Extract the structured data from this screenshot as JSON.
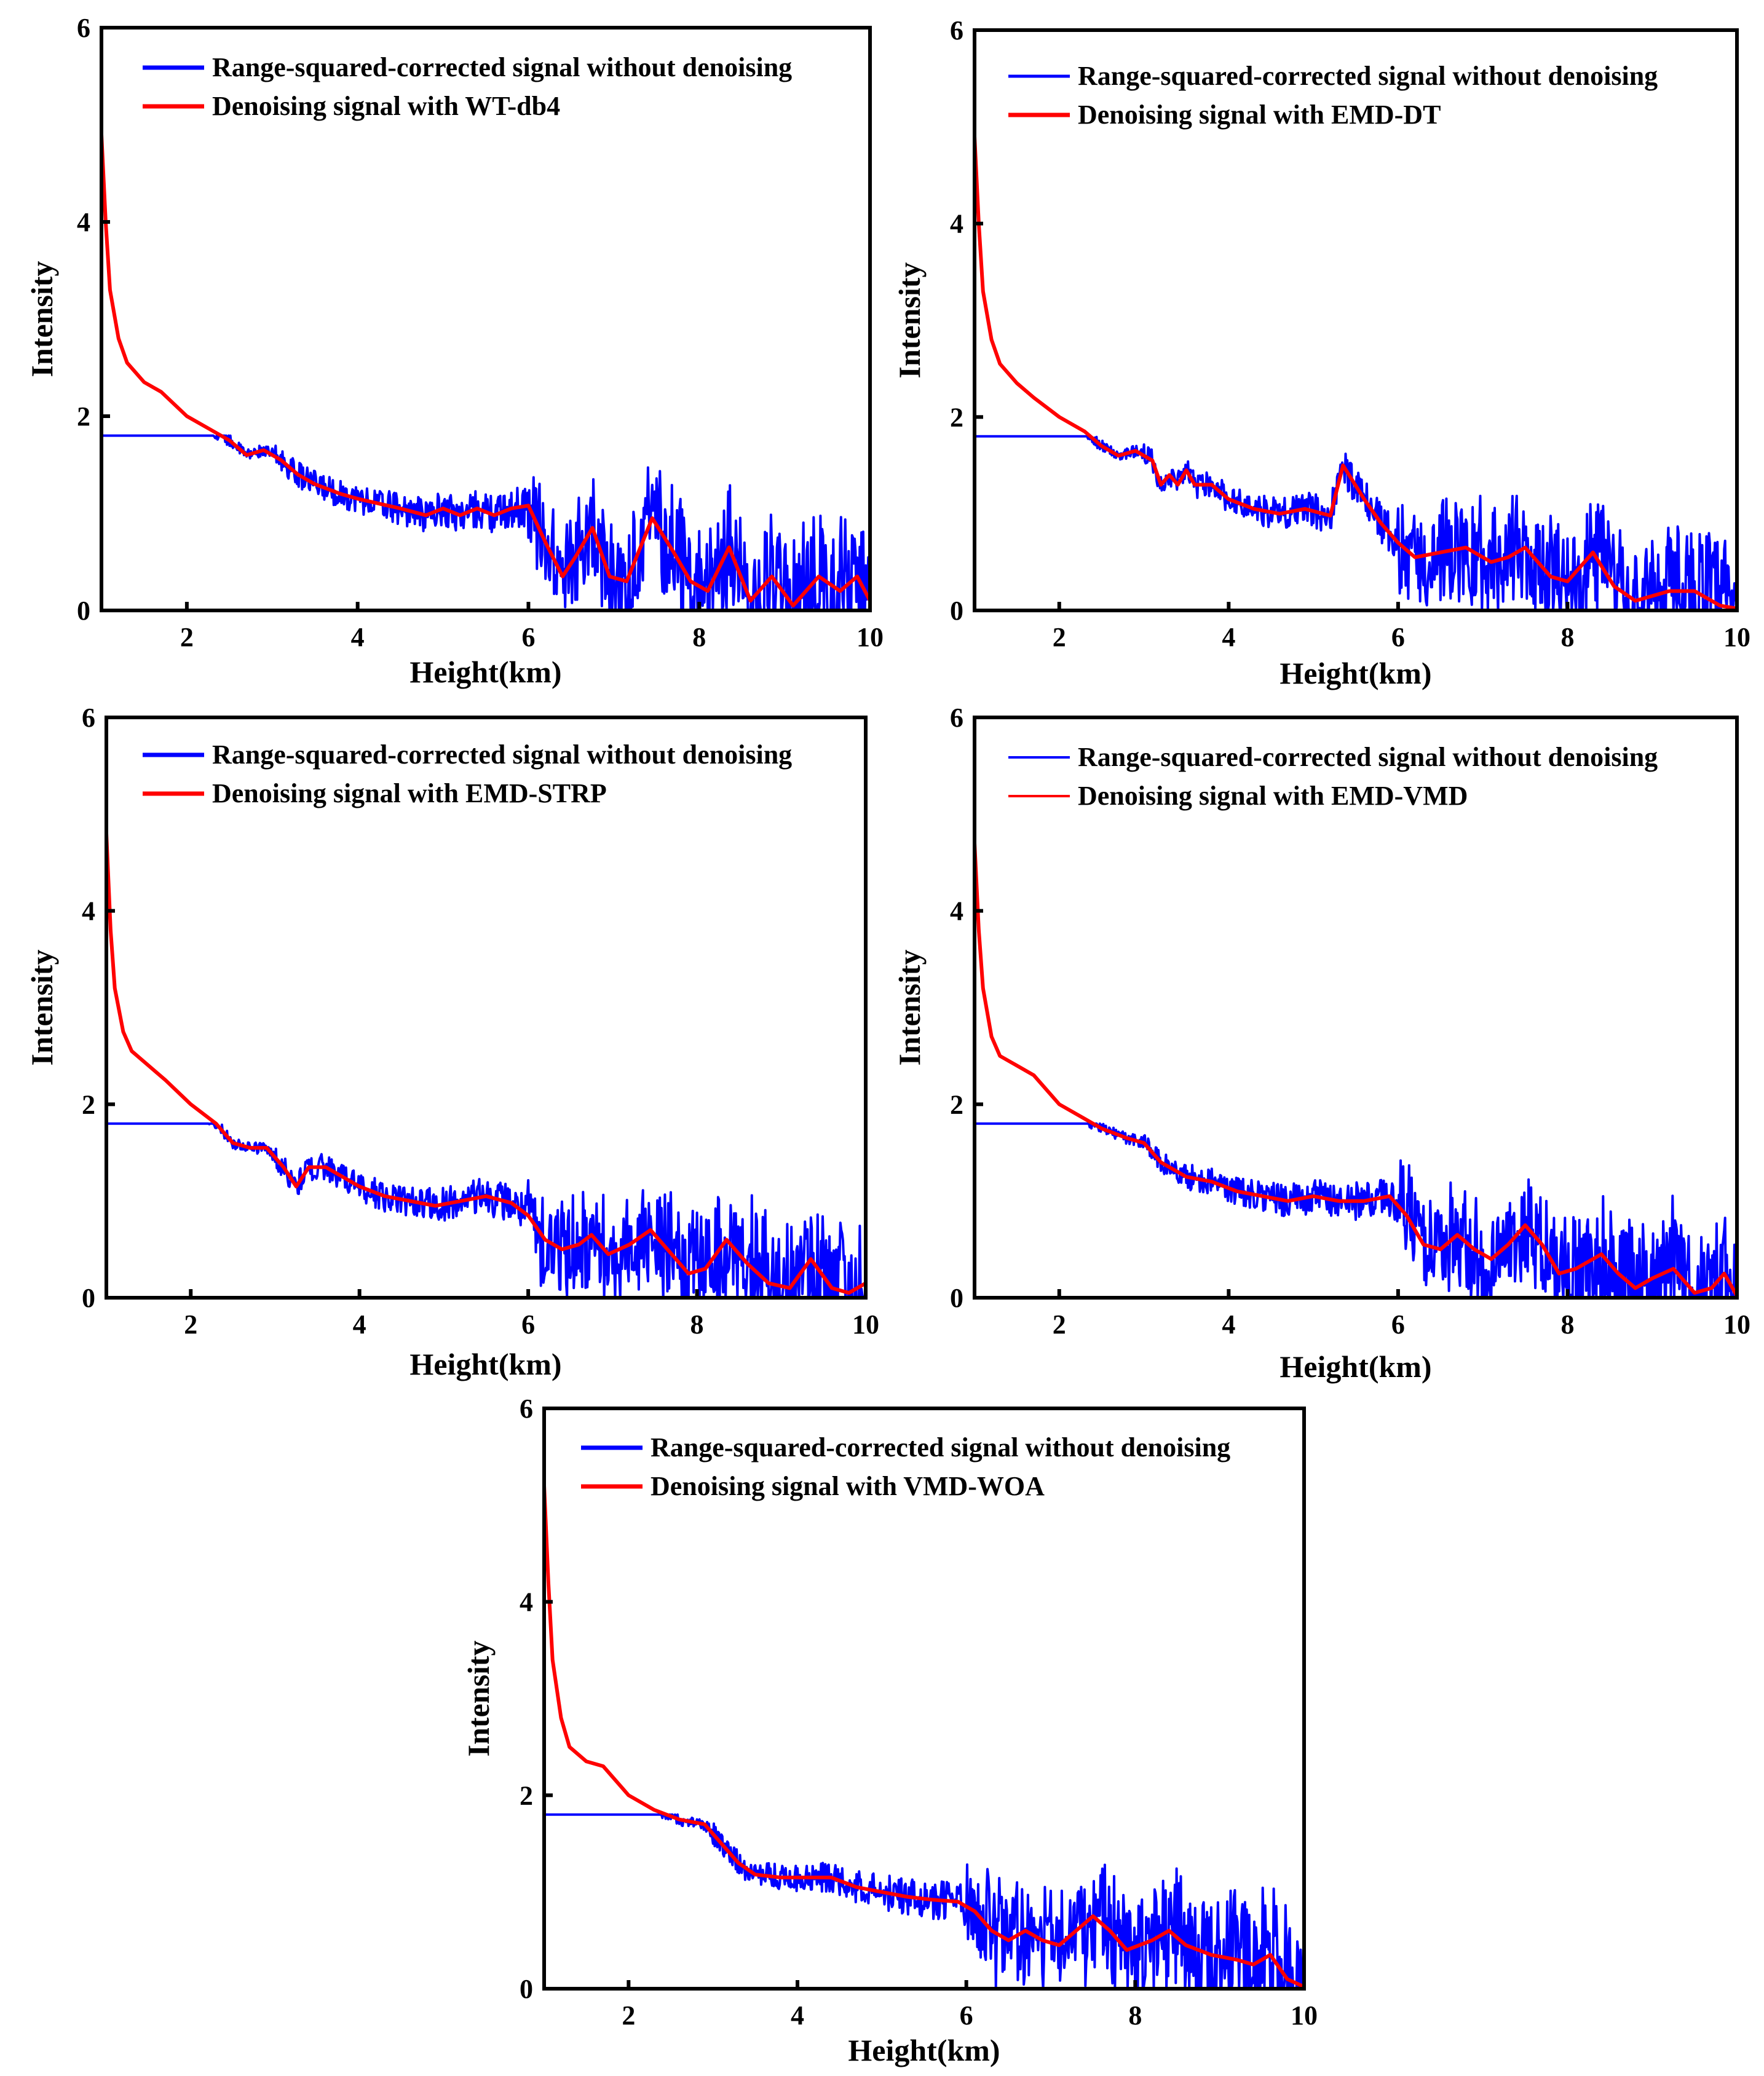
{
  "chart_data": [
    {
      "type": "line",
      "panel": "top-left",
      "xlabel": "Height(km)",
      "ylabel": "Intensity",
      "xlim": [
        1,
        10
      ],
      "ylim": [
        0,
        6
      ],
      "xticks": [
        2,
        4,
        6,
        8,
        10
      ],
      "yticks": [
        0,
        2,
        4,
        6
      ],
      "grid": false,
      "legend_position": "top",
      "series": [
        {
          "name": "Range-squared-corrected signal without denoising",
          "color": "#0000ff",
          "kind": "raw"
        },
        {
          "name": "Denoising signal with WT-db4",
          "color": "#ff0000",
          "kind": "denoised",
          "points": [
            [
              1.0,
              4.9
            ],
            [
              1.05,
              4.0
            ],
            [
              1.1,
              3.3
            ],
            [
              1.2,
              2.8
            ],
            [
              1.3,
              2.55
            ],
            [
              1.5,
              2.35
            ],
            [
              1.7,
              2.25
            ],
            [
              2.0,
              2.0
            ],
            [
              2.3,
              1.85
            ],
            [
              2.5,
              1.75
            ],
            [
              2.7,
              1.6
            ],
            [
              2.9,
              1.65
            ],
            [
              3.1,
              1.55
            ],
            [
              3.3,
              1.4
            ],
            [
              3.5,
              1.3
            ],
            [
              3.8,
              1.2
            ],
            [
              4.0,
              1.15
            ],
            [
              4.5,
              1.05
            ],
            [
              4.8,
              0.98
            ],
            [
              5.0,
              1.05
            ],
            [
              5.2,
              0.98
            ],
            [
              5.4,
              1.05
            ],
            [
              5.6,
              0.98
            ],
            [
              5.8,
              1.05
            ],
            [
              6.0,
              1.08
            ],
            [
              6.2,
              0.7
            ],
            [
              6.4,
              0.35
            ],
            [
              6.55,
              0.55
            ],
            [
              6.75,
              0.85
            ],
            [
              6.95,
              0.35
            ],
            [
              7.15,
              0.3
            ],
            [
              7.45,
              0.95
            ],
            [
              7.7,
              0.6
            ],
            [
              7.9,
              0.3
            ],
            [
              8.1,
              0.2
            ],
            [
              8.35,
              0.65
            ],
            [
              8.6,
              0.1
            ],
            [
              8.85,
              0.35
            ],
            [
              9.1,
              0.05
            ],
            [
              9.4,
              0.35
            ],
            [
              9.65,
              0.2
            ],
            [
              9.85,
              0.35
            ],
            [
              10.0,
              0.1
            ]
          ]
        }
      ]
    },
    {
      "type": "line",
      "panel": "top-right",
      "xlabel": "Height(km)",
      "ylabel": "Intensity",
      "xlim": [
        1,
        10
      ],
      "ylim": [
        0,
        6
      ],
      "xticks": [
        2,
        4,
        6,
        8,
        10
      ],
      "yticks": [
        0,
        2,
        4,
        6
      ],
      "grid": false,
      "legend_position": "top",
      "series": [
        {
          "name": "Range-squared-corrected signal without denoising",
          "color": "#0000ff",
          "kind": "raw"
        },
        {
          "name": "Denoising signal with EMD-DT",
          "color": "#ff0000",
          "kind": "denoised",
          "points": [
            [
              1.0,
              4.9
            ],
            [
              1.05,
              4.0
            ],
            [
              1.1,
              3.3
            ],
            [
              1.2,
              2.8
            ],
            [
              1.3,
              2.55
            ],
            [
              1.5,
              2.35
            ],
            [
              1.7,
              2.2
            ],
            [
              2.0,
              2.0
            ],
            [
              2.3,
              1.85
            ],
            [
              2.5,
              1.7
            ],
            [
              2.7,
              1.6
            ],
            [
              2.9,
              1.65
            ],
            [
              3.1,
              1.55
            ],
            [
              3.2,
              1.3
            ],
            [
              3.3,
              1.4
            ],
            [
              3.4,
              1.3
            ],
            [
              3.5,
              1.45
            ],
            [
              3.6,
              1.3
            ],
            [
              3.8,
              1.3
            ],
            [
              4.0,
              1.15
            ],
            [
              4.3,
              1.05
            ],
            [
              4.6,
              1.0
            ],
            [
              4.9,
              1.05
            ],
            [
              5.2,
              0.98
            ],
            [
              5.35,
              1.5
            ],
            [
              5.6,
              1.15
            ],
            [
              5.8,
              0.9
            ],
            [
              6.0,
              0.7
            ],
            [
              6.2,
              0.55
            ],
            [
              6.5,
              0.6
            ],
            [
              6.8,
              0.65
            ],
            [
              7.1,
              0.5
            ],
            [
              7.3,
              0.55
            ],
            [
              7.5,
              0.65
            ],
            [
              7.8,
              0.35
            ],
            [
              8.0,
              0.3
            ],
            [
              8.3,
              0.6
            ],
            [
              8.55,
              0.25
            ],
            [
              8.8,
              0.1
            ],
            [
              9.2,
              0.2
            ],
            [
              9.5,
              0.2
            ],
            [
              9.8,
              0.05
            ],
            [
              10.0,
              0.02
            ]
          ]
        }
      ]
    },
    {
      "type": "line",
      "panel": "middle-left",
      "xlabel": "Height(km)",
      "ylabel": "Intensity",
      "xlim": [
        1,
        10
      ],
      "ylim": [
        0,
        6
      ],
      "xticks": [
        2,
        4,
        6,
        8,
        10
      ],
      "yticks": [
        0,
        2,
        4,
        6
      ],
      "grid": false,
      "legend_position": "top",
      "series": [
        {
          "name": "Range-squared-corrected signal without denoising",
          "color": "#0000ff",
          "kind": "raw"
        },
        {
          "name": "Denoising signal with EMD-STRP",
          "color": "#ff0000",
          "kind": "denoised",
          "points": [
            [
              1.0,
              4.8
            ],
            [
              1.05,
              3.8
            ],
            [
              1.1,
              3.2
            ],
            [
              1.2,
              2.75
            ],
            [
              1.3,
              2.55
            ],
            [
              1.5,
              2.4
            ],
            [
              1.7,
              2.25
            ],
            [
              2.0,
              2.0
            ],
            [
              2.3,
              1.8
            ],
            [
              2.5,
              1.6
            ],
            [
              2.7,
              1.55
            ],
            [
              2.9,
              1.55
            ],
            [
              3.1,
              1.35
            ],
            [
              3.25,
              1.15
            ],
            [
              3.4,
              1.35
            ],
            [
              3.6,
              1.35
            ],
            [
              3.8,
              1.25
            ],
            [
              4.0,
              1.15
            ],
            [
              4.3,
              1.05
            ],
            [
              4.6,
              1.0
            ],
            [
              4.9,
              0.95
            ],
            [
              5.2,
              1.0
            ],
            [
              5.5,
              1.05
            ],
            [
              5.8,
              0.98
            ],
            [
              6.0,
              0.85
            ],
            [
              6.2,
              0.6
            ],
            [
              6.4,
              0.5
            ],
            [
              6.6,
              0.55
            ],
            [
              6.75,
              0.65
            ],
            [
              6.95,
              0.45
            ],
            [
              7.2,
              0.55
            ],
            [
              7.45,
              0.7
            ],
            [
              7.7,
              0.45
            ],
            [
              7.9,
              0.25
            ],
            [
              8.1,
              0.3
            ],
            [
              8.35,
              0.6
            ],
            [
              8.6,
              0.35
            ],
            [
              8.85,
              0.15
            ],
            [
              9.1,
              0.1
            ],
            [
              9.35,
              0.4
            ],
            [
              9.6,
              0.1
            ],
            [
              9.8,
              0.05
            ],
            [
              10.0,
              0.15
            ]
          ]
        }
      ]
    },
    {
      "type": "line",
      "panel": "middle-right",
      "xlabel": "Height(km)",
      "ylabel": "Intensity",
      "xlim": [
        1,
        10
      ],
      "ylim": [
        0,
        6
      ],
      "xticks": [
        2,
        4,
        6,
        8,
        10
      ],
      "yticks": [
        0,
        2,
        4,
        6
      ],
      "grid": false,
      "legend_position": "top",
      "series": [
        {
          "name": "Range-squared-corrected signal without denoising",
          "color": "#0000ff",
          "kind": "raw"
        },
        {
          "name": "Denoising signal with EMD-VMD",
          "color": "#ff0000",
          "kind": "denoised",
          "points": [
            [
              1.0,
              4.7
            ],
            [
              1.05,
              3.8
            ],
            [
              1.1,
              3.2
            ],
            [
              1.2,
              2.7
            ],
            [
              1.3,
              2.5
            ],
            [
              1.5,
              2.4
            ],
            [
              1.7,
              2.3
            ],
            [
              2.0,
              2.0
            ],
            [
              2.3,
              1.85
            ],
            [
              2.5,
              1.75
            ],
            [
              2.8,
              1.65
            ],
            [
              3.0,
              1.6
            ],
            [
              3.2,
              1.4
            ],
            [
              3.5,
              1.25
            ],
            [
              3.8,
              1.2
            ],
            [
              4.1,
              1.1
            ],
            [
              4.4,
              1.05
            ],
            [
              4.7,
              1.0
            ],
            [
              5.0,
              1.05
            ],
            [
              5.3,
              1.0
            ],
            [
              5.6,
              1.0
            ],
            [
              5.9,
              1.05
            ],
            [
              6.1,
              0.85
            ],
            [
              6.3,
              0.55
            ],
            [
              6.5,
              0.5
            ],
            [
              6.7,
              0.65
            ],
            [
              6.9,
              0.5
            ],
            [
              7.1,
              0.4
            ],
            [
              7.3,
              0.55
            ],
            [
              7.5,
              0.75
            ],
            [
              7.7,
              0.55
            ],
            [
              7.9,
              0.25
            ],
            [
              8.1,
              0.3
            ],
            [
              8.4,
              0.45
            ],
            [
              8.6,
              0.25
            ],
            [
              8.8,
              0.1
            ],
            [
              9.0,
              0.2
            ],
            [
              9.25,
              0.3
            ],
            [
              9.5,
              0.05
            ],
            [
              9.7,
              0.1
            ],
            [
              9.85,
              0.25
            ],
            [
              10.0,
              0.02
            ]
          ]
        }
      ]
    },
    {
      "type": "line",
      "panel": "bottom-center",
      "xlabel": "Height(km)",
      "ylabel": "Intensity",
      "xlim": [
        1,
        10
      ],
      "ylim": [
        0,
        6
      ],
      "xticks": [
        2,
        4,
        6,
        8,
        10
      ],
      "yticks": [
        0,
        2,
        4,
        6
      ],
      "grid": false,
      "legend_position": "top",
      "series": [
        {
          "name": "Range-squared-corrected signal without denoising",
          "color": "#0000ff",
          "kind": "raw"
        },
        {
          "name": "Denoising signal with VMD-WOA",
          "color": "#ff0000",
          "kind": "denoised",
          "points": [
            [
              1.0,
              5.2
            ],
            [
              1.05,
              4.2
            ],
            [
              1.1,
              3.4
            ],
            [
              1.2,
              2.8
            ],
            [
              1.3,
              2.5
            ],
            [
              1.5,
              2.35
            ],
            [
              1.7,
              2.3
            ],
            [
              2.0,
              2.0
            ],
            [
              2.3,
              1.85
            ],
            [
              2.6,
              1.75
            ],
            [
              2.9,
              1.7
            ],
            [
              3.1,
              1.5
            ],
            [
              3.3,
              1.3
            ],
            [
              3.5,
              1.18
            ],
            [
              3.8,
              1.15
            ],
            [
              4.1,
              1.15
            ],
            [
              4.4,
              1.15
            ],
            [
              4.7,
              1.05
            ],
            [
              5.0,
              1.0
            ],
            [
              5.3,
              0.95
            ],
            [
              5.6,
              0.92
            ],
            [
              5.9,
              0.9
            ],
            [
              6.1,
              0.8
            ],
            [
              6.3,
              0.6
            ],
            [
              6.5,
              0.5
            ],
            [
              6.7,
              0.6
            ],
            [
              6.9,
              0.5
            ],
            [
              7.1,
              0.45
            ],
            [
              7.3,
              0.6
            ],
            [
              7.5,
              0.75
            ],
            [
              7.7,
              0.6
            ],
            [
              7.9,
              0.4
            ],
            [
              8.2,
              0.5
            ],
            [
              8.4,
              0.6
            ],
            [
              8.6,
              0.45
            ],
            [
              8.9,
              0.35
            ],
            [
              9.2,
              0.3
            ],
            [
              9.4,
              0.25
            ],
            [
              9.6,
              0.35
            ],
            [
              9.8,
              0.1
            ],
            [
              10.0,
              0.02
            ]
          ]
        }
      ]
    }
  ]
}
